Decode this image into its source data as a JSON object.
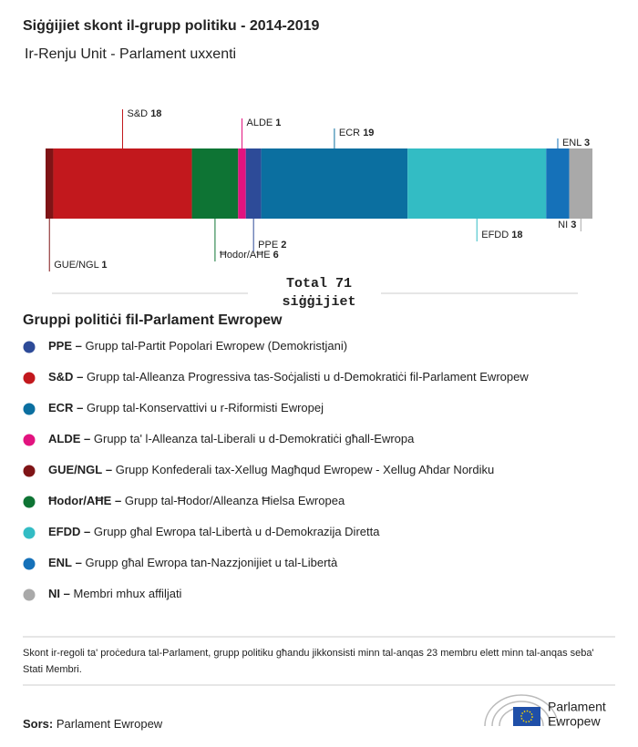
{
  "chart_data": {
    "type": "stacked-bar",
    "title": "Siġġijiet skont il-grupp politiku - 2014-2019",
    "subtitle": "Ir-Renju Unit - Parlament uxxenti",
    "series": [
      {
        "name": "GUE/NGL",
        "color": "#7f1416",
        "values": [
          1
        ]
      },
      {
        "name": "S&D",
        "color": "#c2181d",
        "values": [
          18
        ]
      },
      {
        "name": "Ħodor/AĦE",
        "color": "#0e7434",
        "values": [
          6
        ]
      },
      {
        "name": "ALDE",
        "color": "#e2137f",
        "values": [
          1
        ]
      },
      {
        "name": "PPE",
        "color": "#2d4b98",
        "values": [
          2
        ]
      },
      {
        "name": "ECR",
        "color": "#0b6fa0",
        "values": [
          19
        ]
      },
      {
        "name": "EFDD",
        "color": "#33bcc4",
        "values": [
          18
        ]
      },
      {
        "name": "ENL",
        "color": "#1571b9",
        "values": [
          3
        ]
      },
      {
        "name": "NI",
        "color": "#a9a9a9",
        "values": [
          3
        ]
      }
    ],
    "xlim": [
      0,
      71
    ],
    "total_label": "Total",
    "total": 71,
    "total_unit": "siġġijiet"
  },
  "legend": {
    "title": "Gruppi politiċi fil-Parlament Ewropew",
    "separator": "–",
    "items": [
      {
        "name": "PPE",
        "description": "Grupp tal-Partit Popolari Ewropew (Demokristjani)"
      },
      {
        "name": "S&D",
        "description": "Grupp tal-Alleanza Progressiva tas-Soċjalisti u d-Demokratiċi fil-Parlament Ewropew"
      },
      {
        "name": "ECR",
        "description": "Grupp tal-Konservattivi u r-Riformisti Ewropej"
      },
      {
        "name": "ALDE",
        "description": "Grupp ta' l-Alleanza tal-Liberali u d-Demokratiċi għall-Ewropa"
      },
      {
        "name": "GUE/NGL",
        "description": "Grupp Konfederali tax-Xellug Magħqud Ewropew - Xellug Aħdar Nordiku"
      },
      {
        "name": "Ħodor/AĦE",
        "description": "Grupp tal-Ħodor/Alleanza Ħielsa Ewropea"
      },
      {
        "name": "EFDD",
        "description": "Grupp għal Ewropa tal-Libertà u d-Demokrazija Diretta"
      },
      {
        "name": "ENL",
        "description": "Grupp għal Ewropa tan-Nazzjonijiet u tal-Libertà"
      },
      {
        "name": "NI",
        "description": "Membri mhux affiljati"
      }
    ]
  },
  "note": "Skont ir-regoli ta' proċedura tal-Parlament, grupp politiku għandu jikkonsisti minn tal-anqas 23 membru elett minn tal-anqas seba' Stati Membri.",
  "source": {
    "label": "Sors:",
    "text": "Parlament Ewropew"
  },
  "logo": {
    "line1": "Parlament",
    "line2": "Ewropew"
  }
}
